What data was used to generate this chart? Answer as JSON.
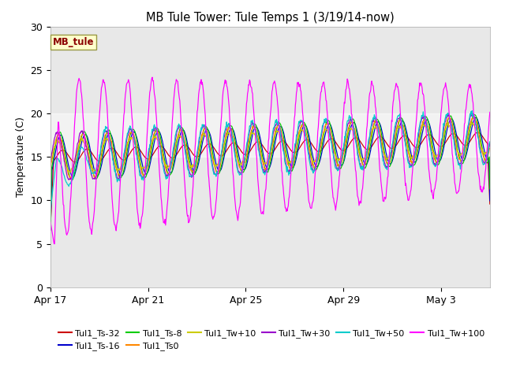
{
  "title": "MB Tule Tower: Tule Temps 1 (3/19/14-now)",
  "ylabel": "Temperature (C)",
  "ylim": [
    0,
    30
  ],
  "yticks": [
    0,
    5,
    10,
    15,
    20,
    25,
    30
  ],
  "series": [
    {
      "label": "Tul1_Ts-32",
      "color": "#cc0000"
    },
    {
      "label": "Tul1_Ts-16",
      "color": "#0000cc"
    },
    {
      "label": "Tul1_Ts-8",
      "color": "#00cc00"
    },
    {
      "label": "Tul1_Ts0",
      "color": "#ff8800"
    },
    {
      "label": "Tul1_Tw+10",
      "color": "#cccc00"
    },
    {
      "label": "Tul1_Tw+30",
      "color": "#9900cc"
    },
    {
      "label": "Tul1_Tw+50",
      "color": "#00cccc"
    },
    {
      "label": "Tul1_Tw+100",
      "color": "#ff00ff"
    }
  ],
  "xtick_labels": [
    "Apr 17",
    "Apr 21",
    "Apr 25",
    "Apr 29",
    "May 3"
  ],
  "xtick_positions": [
    0,
    4,
    8,
    12,
    16
  ],
  "num_days": 18,
  "ppd": 48,
  "plot_bg": "#e8e8e8",
  "band_low": 15,
  "band_high": 20,
  "band_color": "#d0d0d0"
}
